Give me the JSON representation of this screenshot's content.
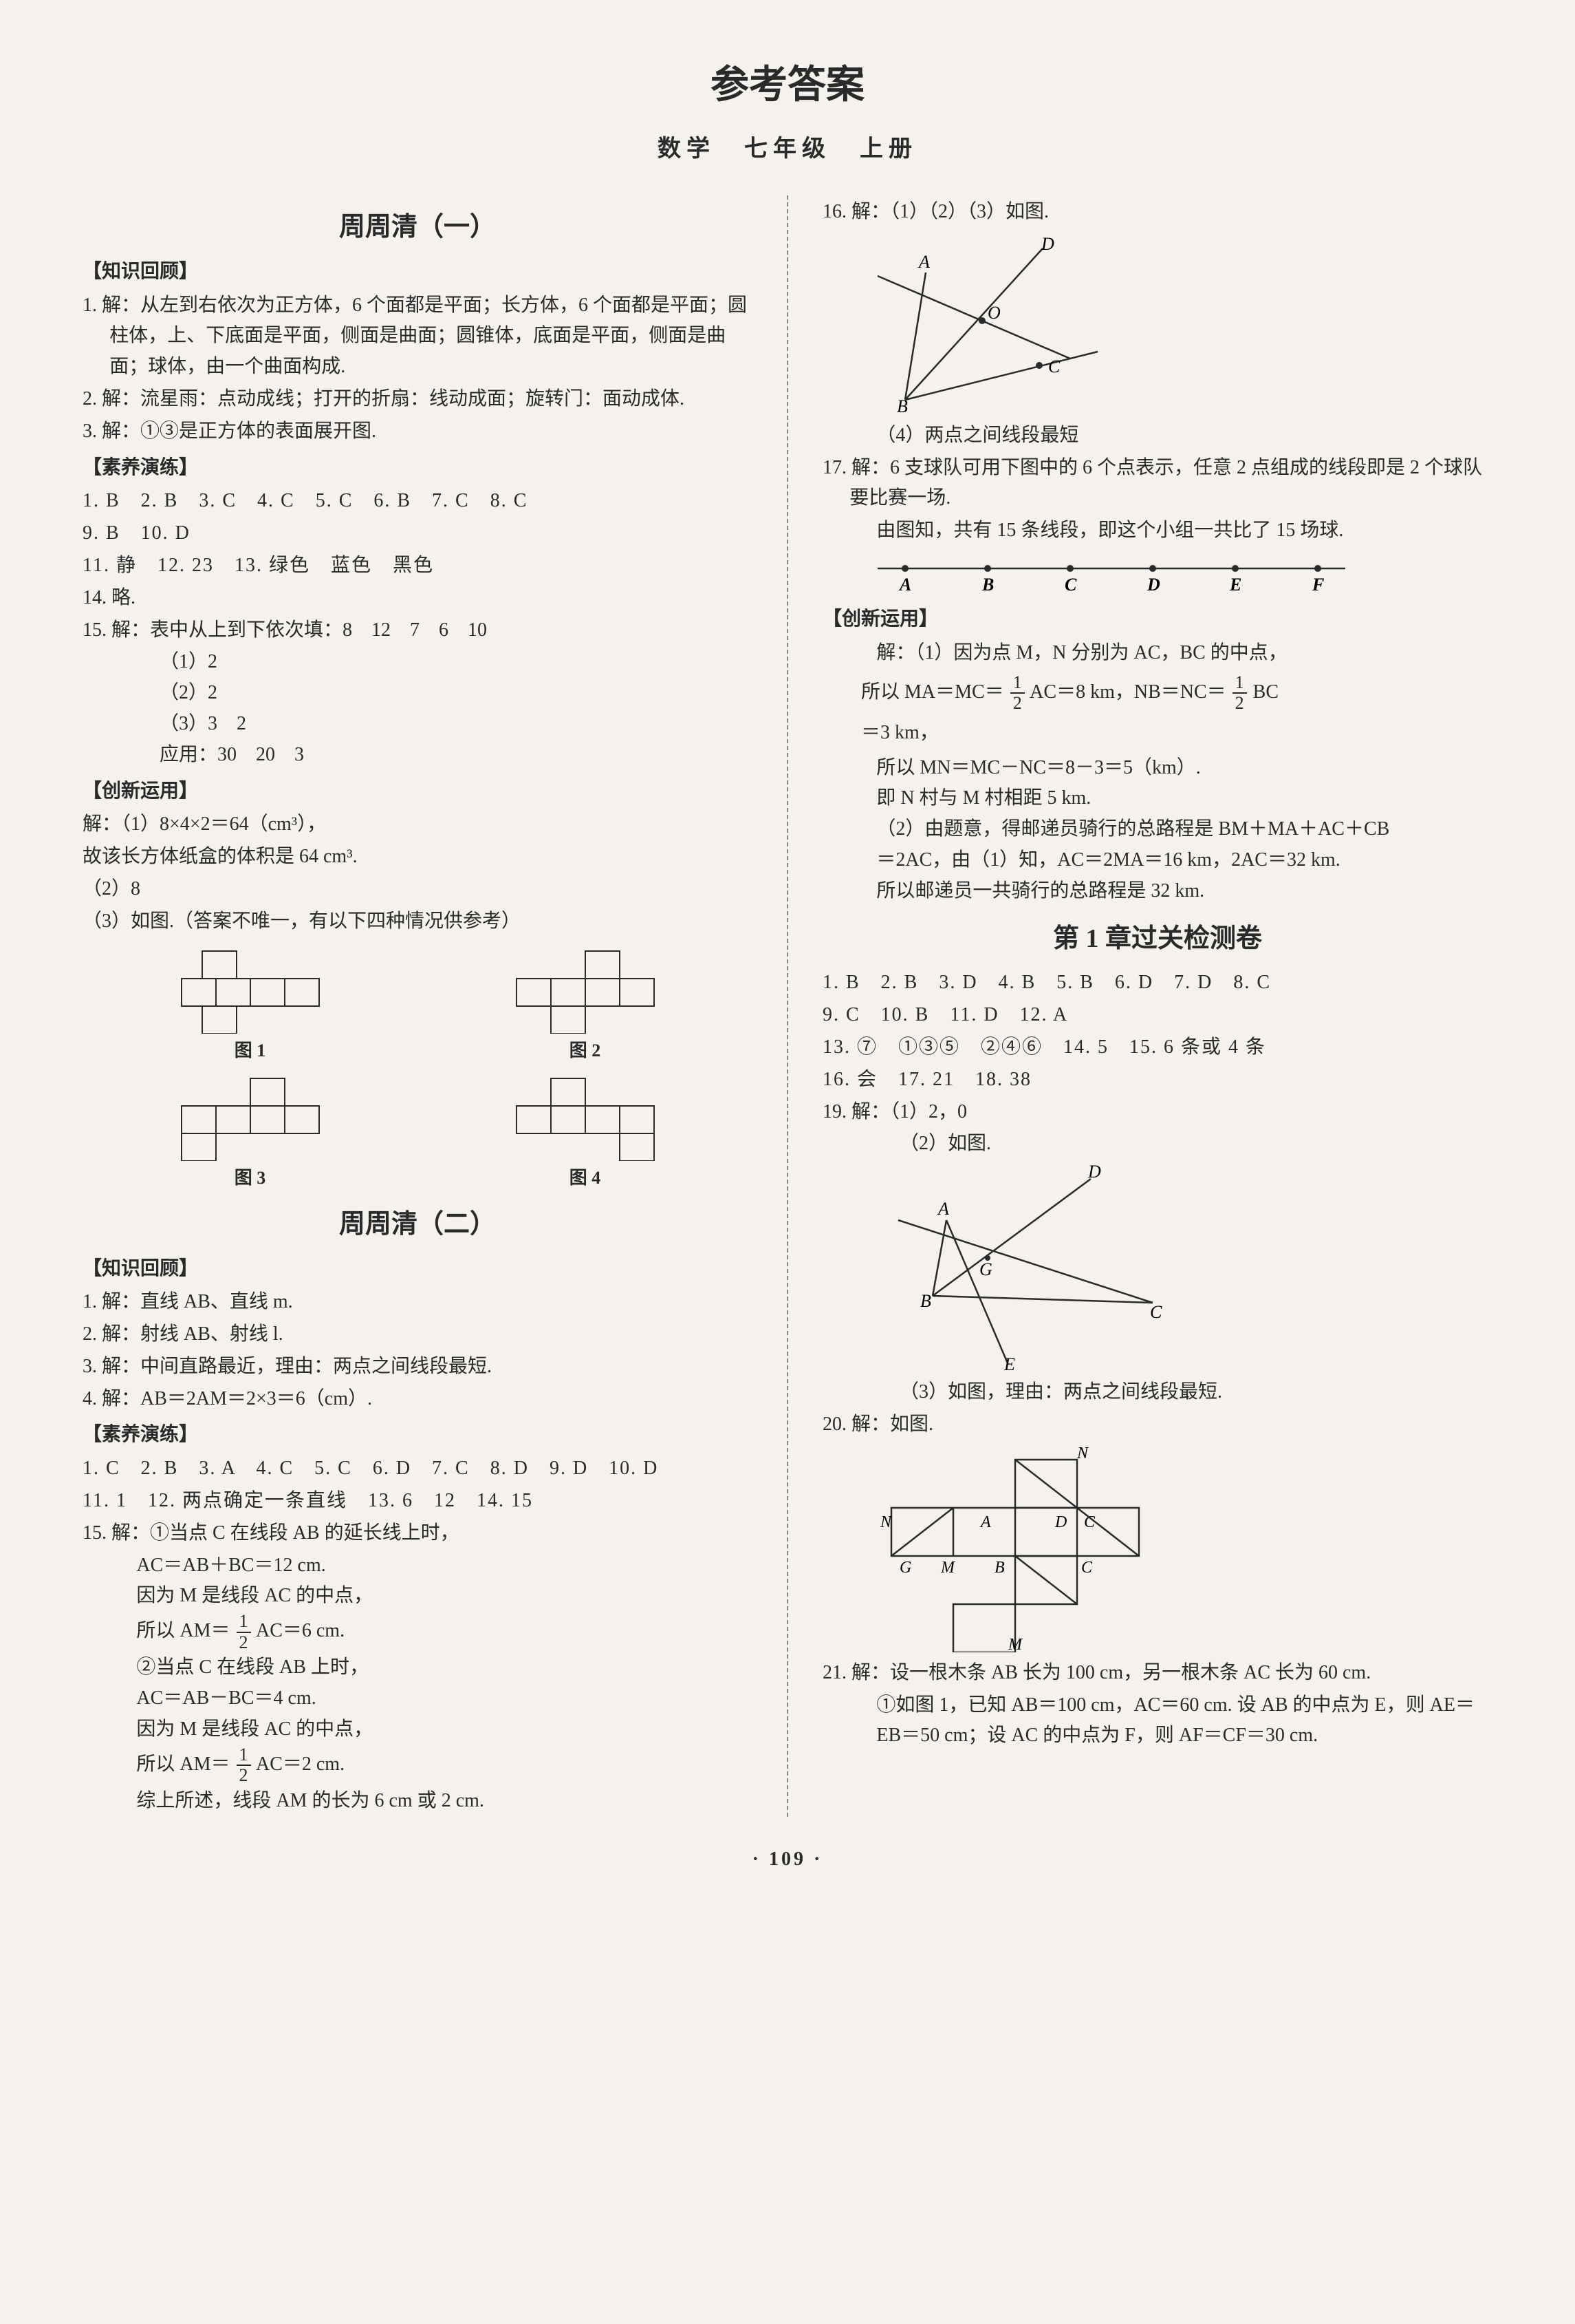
{
  "title": "参考答案",
  "subtitle": "数学　七年级　上册",
  "pageNumber": "· 109 ·",
  "left": {
    "sec1Title": "周周清（一）",
    "zshg": "【知识回顾】",
    "q1": "1. 解：从左到右依次为正方体，6 个面都是平面；长方体，6 个面都是平面；圆柱体，上、下底面是平面，侧面是曲面；圆锥体，底面是平面，侧面是曲面；球体，由一个曲面构成.",
    "q2": "2. 解：流星雨：点动成线；打开的折扇：线动成面；旋转门：面动成体.",
    "q3": "3. 解：①③是正方体的表面展开图.",
    "syylHeader": "【素养演练】",
    "syyl1": "1. B　2. B　3. C　4. C　5. C　6. B　7. C　8. C",
    "syyl2": "9. B　10. D",
    "syyl3": "11. 静　12. 23　13. 绿色　蓝色　黑色",
    "syyl4": "14. 略.",
    "q15a": "15. 解：表中从上到下依次填：8　12　7　6　10",
    "q15b": "（1）2",
    "q15c": "（2）2",
    "q15d": "（3）3　2",
    "q15e": "应用：30　20　3",
    "cxyyHeader": "【创新运用】",
    "cx1": "解：（1）8×4×2＝64（cm³），",
    "cx2": "故该长方体纸盒的体积是 64 cm³.",
    "cx3": "（2）8",
    "cx4": "（3）如图.（答案不唯一，有以下四种情况供参考）",
    "figLabels": [
      "图 1",
      "图 2",
      "图 3",
      "图 4"
    ],
    "sec2Title": "周周清（二）",
    "zshg2": "【知识回顾】",
    "s2q1": "1. 解：直线 AB、直线 m.",
    "s2q2": "2. 解：射线 AB、射线 l.",
    "s2q3": "3. 解：中间直路最近，理由：两点之间线段最短.",
    "s2q4": "4. 解：AB＝2AM＝2×3＝6（cm）.",
    "syyl2Header": "【素养演练】",
    "s2row1": "1. C　2. B　3. A　4. C　5. C　6. D　7. C　8. D　9. D　10. D",
    "s2row2": "11. 1　12. 两点确定一条直线　13. 6　12　14. 15",
    "s2q15a": "15. 解：①当点 C 在线段 AB 的延长线上时，",
    "s2q15b": "AC＝AB＋BC＝12 cm.",
    "s2q15c": "因为 M 是线段 AC 的中点，",
    "s2q15d_pre": "所以 AM＝",
    "s2q15d_post": "AC＝6 cm.",
    "s2q15e": "②当点 C 在线段 AB 上时，",
    "s2q15f": "AC＝AB－BC＝4 cm.",
    "s2q15g": "因为 M 是线段 AC 的中点，",
    "s2q15h_pre": "所以 AM＝",
    "s2q15h_post": "AC＝2 cm.",
    "s2q15i": "综上所述，线段 AM 的长为 6 cm 或 2 cm."
  },
  "right": {
    "q16": "16. 解：（1）（2）（3）如图.",
    "q16b": "（4）两点之间线段最短",
    "q17a": "17. 解：6 支球队可用下图中的 6 个点表示，任意 2 点组成的线段即是 2 个球队要比赛一场.",
    "q17b": "由图知，共有 15 条线段，即这个小组一共比了 15 场球.",
    "numberLineLabels": [
      "A",
      "B",
      "C",
      "D",
      "E",
      "F"
    ],
    "cxyyHeader": "【创新运用】",
    "cxr1": "解：（1）因为点 M，N 分别为 AC，BC 的中点，",
    "cxr2_pre": "所以 MA＝MC＝",
    "cxr2_mid": "AC＝8 km，NB＝NC＝",
    "cxr2_post": "BC",
    "cxr3": "＝3 km，",
    "cxr4": "所以 MN＝MC－NC＝8－3＝5（km）.",
    "cxr5": "即 N 村与 M 村相距 5 km.",
    "cxr6": "（2）由题意，得邮递员骑行的总路程是 BM＋MA＋AC＋CB",
    "cxr7": "＝2AC，由（1）知，AC＝2MA＝16 km，2AC＝32 km.",
    "cxr8": "所以邮递员一共骑行的总路程是 32 km.",
    "chapterTitle": "第 1 章过关检测卷",
    "crow1": "1. B　2. B　3. D　4. B　5. B　6. D　7. D　8. C",
    "crow2": "9. C　10. B　11. D　12. A",
    "crow3": "13. ⑦　①③⑤　②④⑥　14. 5　15. 6 条或 4 条",
    "crow4": "16. 会　17. 21　18. 38",
    "c19a": "19. 解：（1）2，0",
    "c19b": "（2）如图.",
    "c19c": "（3）如图，理由：两点之间线段最短.",
    "c20": "20. 解：如图.",
    "c21a": "21. 解：设一根木条 AB 长为 100 cm，另一根木条 AC 长为 60 cm.",
    "c21b": "①如图 1，已知 AB＝100 cm，AC＝60 cm. 设 AB 的中点为 E，则 AE＝EB＝50 cm；设 AC 的中点为 F，则 AF＝CF＝30 cm.",
    "diagramLabels": {
      "fig16": {
        "A": "A",
        "B": "B",
        "C": "C",
        "D": "D",
        "O": "O"
      },
      "fig19": {
        "A": "A",
        "B": "B",
        "C": "C",
        "D": "D",
        "E": "E",
        "G": "G"
      },
      "fig20": {
        "N1": "N",
        "N2": "N",
        "A": "A",
        "D": "D",
        "C1": "C",
        "G": "G",
        "M1": "M",
        "B": "B",
        "C2": "C",
        "M2": "M"
      }
    }
  },
  "colors": {
    "text": "#2a2a2a",
    "bg": "#f5f2ed",
    "stroke": "#2a2a2a"
  },
  "fracHalf": {
    "num": "1",
    "den": "2"
  }
}
